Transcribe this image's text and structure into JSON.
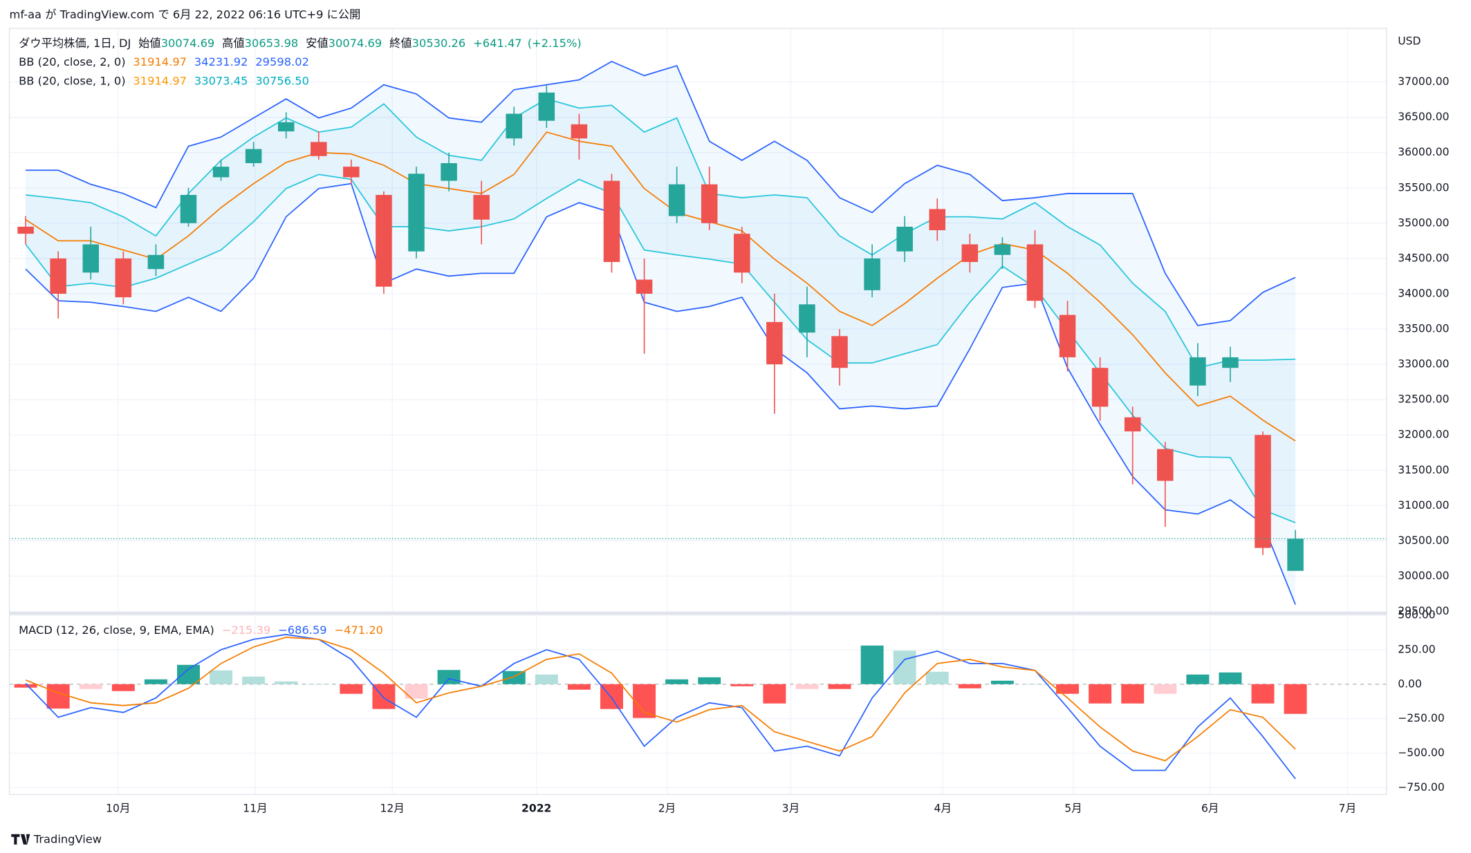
{
  "header": {
    "published": "mf-aa が TradingView.com で 6月 22, 2022 06:16 UTC+9 に公開"
  },
  "footer": {
    "brand": "TradingView"
  },
  "chart_data": [
    {
      "type": "candlestick",
      "currency": "USD",
      "legend": {
        "symbol": "ダウ平均株価, 1日, DJ",
        "open_label": "始値",
        "high_label": "高値",
        "low_label": "安値",
        "close_label": "終値",
        "change": "+641.47",
        "change_pct": "(+2.15%)"
      },
      "indicators": [
        {
          "label": "BB (20, close, 2, 0)",
          "values": [
            "31914.97",
            "34231.92",
            "29598.02"
          ],
          "colors": [
            "#f57c00",
            "#2962ff",
            "#2962ff"
          ]
        },
        {
          "label": "BB (20, close, 1, 0)",
          "values": [
            "31914.97",
            "33073.45",
            "30756.50"
          ],
          "colors": [
            "#ff9800",
            "#00acc1",
            "#00acc1"
          ]
        }
      ],
      "categories": [
        null,
        null,
        null,
        null,
        null,
        null,
        null,
        null,
        null,
        null,
        null,
        null,
        null,
        null,
        null,
        null,
        null,
        null,
        null,
        null,
        null,
        null,
        null,
        null,
        null,
        null,
        null,
        null,
        null,
        null,
        null,
        null,
        null,
        null,
        null,
        null,
        null,
        null,
        null,
        null
      ],
      "open": [
        34950,
        34500,
        34300,
        34500,
        34350,
        35000,
        35650,
        35850,
        36300,
        36150,
        35800,
        35400,
        34600,
        35600,
        35400,
        36200,
        36450,
        36400,
        35600,
        34200,
        35100,
        35550,
        34850,
        33600,
        33450,
        33400,
        34050,
        34600,
        35200,
        34700,
        34550,
        34700,
        33700,
        32950,
        32250,
        31800,
        32700,
        32950,
        32000,
        30074.69
      ],
      "high": [
        35100,
        34600,
        34950,
        34600,
        34700,
        35500,
        35900,
        36150,
        36570,
        36300,
        35900,
        35450,
        35800,
        36000,
        35600,
        36650,
        36950,
        36550,
        35700,
        34500,
        35800,
        35800,
        34950,
        34000,
        34100,
        33500,
        34700,
        35100,
        35350,
        34850,
        34800,
        34900,
        33900,
        33100,
        32400,
        31900,
        33300,
        33250,
        32050,
        30653.98
      ],
      "low": [
        34700,
        33650,
        34200,
        33850,
        34250,
        34950,
        35600,
        35800,
        36200,
        35900,
        35550,
        34000,
        34500,
        35450,
        34700,
        36100,
        36350,
        35900,
        34300,
        33150,
        35000,
        34900,
        34150,
        32300,
        33100,
        32700,
        33950,
        34450,
        34750,
        34300,
        34350,
        33800,
        32900,
        32200,
        31300,
        30700,
        32550,
        32750,
        30300,
        30074.69
      ],
      "close": [
        34850,
        34000,
        34700,
        33950,
        34550,
        35400,
        35800,
        36050,
        36430,
        35950,
        35650,
        34100,
        35700,
        35850,
        35050,
        36550,
        36850,
        36200,
        34450,
        34000,
        35550,
        35000,
        34300,
        33000,
        33850,
        32950,
        34500,
        34950,
        34900,
        34450,
        34700,
        33900,
        33100,
        32400,
        32050,
        31350,
        33100,
        33100,
        30400,
        30530.26
      ],
      "up_color": "#26a69a",
      "down_color": "#ef5350",
      "series": [
        {
          "color": "#2962ff",
          "values": [
            35750,
            35750,
            35550,
            35420,
            35220,
            36090,
            36220,
            36490,
            36760,
            36490,
            36630,
            36960,
            36830,
            36490,
            36430,
            36890,
            36960,
            37030,
            37290,
            37090,
            37230,
            36160,
            35890,
            36160,
            35890,
            35360,
            35150,
            35560,
            35820,
            35690,
            35320,
            35360,
            35420,
            35420,
            35420,
            34290,
            33550,
            33620,
            34020,
            34231.92
          ]
        },
        {
          "color": "#2962ff",
          "values": [
            34350,
            33900,
            33880,
            33820,
            33750,
            33950,
            33750,
            34220,
            35090,
            35490,
            35560,
            34150,
            34350,
            34250,
            34290,
            34290,
            35090,
            35290,
            35150,
            33880,
            33750,
            33820,
            33950,
            33220,
            32880,
            32370,
            32410,
            32370,
            32410,
            33220,
            34090,
            34150,
            32950,
            32150,
            31410,
            30940,
            30880,
            31080,
            30740,
            29598.02
          ]
        },
        {
          "color": "#26c6da",
          "values": [
            35400,
            35350,
            35290,
            35090,
            34820,
            35420,
            35890,
            36220,
            36490,
            36290,
            36360,
            36690,
            36220,
            35960,
            35890,
            36490,
            36760,
            36630,
            36670,
            36290,
            36490,
            35420,
            35360,
            35400,
            35360,
            34820,
            34550,
            34850,
            35090,
            35090,
            35060,
            35290,
            34950,
            34690,
            34150,
            33750,
            32950,
            33060,
            33060,
            33073.45
          ]
        },
        {
          "color": "#26c6da",
          "values": [
            34700,
            34100,
            34150,
            34090,
            34220,
            34420,
            34620,
            35020,
            35490,
            35690,
            35620,
            34950,
            34950,
            34890,
            34950,
            35060,
            35350,
            35620,
            35420,
            34620,
            34550,
            34490,
            34420,
            33880,
            33350,
            33020,
            33020,
            33150,
            33280,
            33880,
            34390,
            34090,
            33480,
            32880,
            32280,
            31810,
            31690,
            31680,
            30940,
            30756.5
          ]
        },
        {
          "color": "#f57c00",
          "values": [
            35050,
            34750,
            34750,
            34620,
            34490,
            34820,
            35220,
            35560,
            35860,
            36000,
            35980,
            35820,
            35560,
            35490,
            35420,
            35690,
            36290,
            36160,
            36090,
            35490,
            35150,
            35020,
            34890,
            34490,
            34150,
            33750,
            33550,
            33860,
            34220,
            34550,
            34710,
            34620,
            34290,
            33880,
            33420,
            32880,
            32410,
            32550,
            32210,
            31914.97
          ]
        }
      ],
      "ylim": [
        29500,
        37760
      ],
      "yticks": [
        {
          "value": 29500,
          "label": "29500.00"
        },
        {
          "value": 30000,
          "label": "30000.00"
        },
        {
          "value": 30500,
          "label": "30500.00"
        },
        {
          "value": 31000,
          "label": "31000.00"
        },
        {
          "value": 31500,
          "label": "31500.00"
        },
        {
          "value": 32000,
          "label": "32000.00"
        },
        {
          "value": 32500,
          "label": "32500.00"
        },
        {
          "value": 33000,
          "label": "33000.00"
        },
        {
          "value": 33500,
          "label": "33500.00"
        },
        {
          "value": 34000,
          "label": "34000.00"
        },
        {
          "value": 34500,
          "label": "34500.00"
        },
        {
          "value": 35000,
          "label": "35000.00"
        },
        {
          "value": 35500,
          "label": "35500.00"
        },
        {
          "value": 36000,
          "label": "36000.00"
        },
        {
          "value": 36500,
          "label": "36500.00"
        },
        {
          "value": 37000,
          "label": "37000.00"
        }
      ],
      "xlim": [
        -0.5,
        41.8
      ],
      "xticks": [
        {
          "value": 2.84,
          "label": "10月"
        },
        {
          "value": 7.05,
          "label": "11月"
        },
        {
          "value": 11.26,
          "label": "12月"
        },
        {
          "value": 15.69,
          "label": "2022"
        },
        {
          "value": 19.7,
          "label": "2月"
        },
        {
          "value": 23.5,
          "label": "3月"
        },
        {
          "value": 28.17,
          "label": "4月"
        },
        {
          "value": 32.18,
          "label": "5月"
        },
        {
          "value": 36.38,
          "label": "6月"
        },
        {
          "value": 40.6,
          "label": "7月"
        }
      ],
      "grid": true
    },
    {
      "type": "macd",
      "legend": {
        "label": "MACD (12, 26, close, 9, EMA, EMA)",
        "values": [
          "−215.39",
          "−686.59",
          "−471.20"
        ],
        "colors": [
          "#ffb3b8",
          "#2962ff",
          "#f57c00"
        ]
      },
      "categories": [
        null,
        null,
        null,
        null,
        null,
        null,
        null,
        null,
        null,
        null,
        null,
        null,
        null,
        null,
        null,
        null,
        null,
        null,
        null,
        null,
        null,
        null,
        null,
        null,
        null,
        null,
        null,
        null,
        null,
        null,
        null,
        null,
        null,
        null,
        null,
        null,
        null,
        null,
        null,
        null
      ],
      "series": [
        {
          "color": "#2962ff",
          "values": [
            5,
            -240,
            -170,
            -205,
            -100,
            110,
            250,
            325,
            360,
            325,
            180,
            -100,
            -240,
            40,
            -15,
            150,
            250,
            180,
            -100,
            -450,
            -240,
            -135,
            -170,
            -485,
            -450,
            -520,
            -100,
            180,
            240,
            150,
            150,
            100,
            -170,
            -450,
            -625,
            -625,
            -310,
            -100,
            -380,
            -686.59
          ]
        },
        {
          "color": "#f57c00",
          "values": [
            30,
            -63,
            -135,
            -155,
            -135,
            -30,
            150,
            270,
            340,
            325,
            250,
            80,
            -135,
            -63,
            -15,
            55,
            180,
            220,
            80,
            -205,
            -275,
            -185,
            -155,
            -345,
            -415,
            -485,
            -380,
            -63,
            150,
            180,
            125,
            100,
            -100,
            -310,
            -485,
            -555,
            -380,
            -185,
            -240,
            -471.2
          ]
        }
      ],
      "histogram": {
        "values": [
          -25,
          -177,
          -35,
          -50,
          35,
          140,
          100,
          55,
          20,
          0,
          -70,
          -180,
          -105,
          103,
          0,
          95,
          70,
          -40,
          -180,
          -245,
          35,
          50,
          -15,
          -140,
          -35,
          -35,
          280,
          243,
          90,
          -30,
          25,
          0,
          -70,
          -140,
          -140,
          -70,
          70,
          85,
          -140,
          -215.39
        ],
        "colors": {
          "grow_up": "#26a69a",
          "fall_up": "#b2dfdb",
          "fall_down": "#ff5252",
          "grow_down": "#ffcdd2"
        }
      },
      "ylim": [
        -800,
        500
      ],
      "yticks": [
        {
          "value": 500,
          "label": "500.00"
        },
        {
          "value": 250,
          "label": "250.00"
        },
        {
          "value": 0,
          "label": "0.00"
        },
        {
          "value": -250,
          "label": "−250.00"
        },
        {
          "value": -500,
          "label": "−500.00"
        },
        {
          "value": -750,
          "label": "−750.00"
        }
      ]
    }
  ]
}
